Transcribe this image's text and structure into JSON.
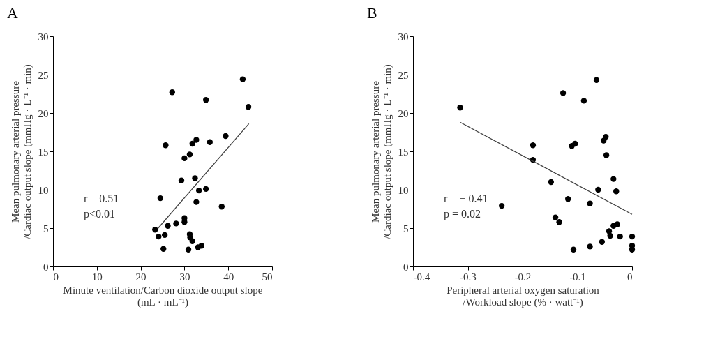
{
  "chart_data": [
    {
      "type": "scatter",
      "title": "A",
      "xlabel": "Minute ventilation/Carbon dioxide output slope\n(mL · mL⁻¹)",
      "ylabel": "Mean pulmonary arterial pressure\n/Cardiac output slope (mmHg · L⁻¹ · min)",
      "xlim": [
        0,
        50
      ],
      "xticks": [
        0,
        10,
        20,
        30,
        40,
        50
      ],
      "ylim": [
        0,
        30
      ],
      "yticks": [
        0,
        5,
        10,
        15,
        20,
        25,
        30
      ],
      "grid": false,
      "annotations": [
        "r = 0.51",
        "p<0.01"
      ],
      "series": [
        {
          "marker": "circle",
          "color": "#000000",
          "x": [
            27.2,
            43.3,
            34.9,
            44.6,
            39.4,
            32.7,
            31.8,
            35.8,
            25.7,
            31.2,
            30.0,
            29.3,
            32.4,
            33.3,
            34.9,
            24.5,
            32.7,
            38.5,
            30.0,
            30.0,
            28.1,
            26.2,
            23.3,
            24.1,
            25.5,
            31.2,
            31.3,
            31.8,
            25.2,
            30.9,
            33.1,
            33.9
          ],
          "values": [
            22.7,
            24.4,
            21.7,
            20.8,
            17.0,
            16.5,
            16.0,
            16.2,
            15.8,
            14.6,
            14.1,
            11.2,
            11.5,
            9.9,
            10.1,
            8.9,
            8.4,
            7.8,
            6.3,
            5.8,
            5.6,
            5.3,
            4.8,
            3.9,
            4.1,
            4.2,
            3.8,
            3.3,
            2.3,
            2.2,
            2.5,
            2.7
          ]
        },
        {
          "type": "line",
          "color": "#404040",
          "line_style": "solid",
          "x": [
            24.0,
            44.7
          ],
          "values": [
            5.0,
            18.6
          ]
        }
      ]
    },
    {
      "type": "scatter",
      "title": "B",
      "xlabel": "Peripheral arterial oxygen saturation\n/Workload slope (% · watt⁻¹)",
      "ylabel": "Mean pulmonary arterial pressure\n/Cardiac output slope (mmHg · L⁻¹ · min)",
      "xlim": [
        -0.4,
        0
      ],
      "xticks": [
        -0.4,
        -0.3,
        -0.2,
        -0.1,
        0
      ],
      "ylim": [
        0,
        30
      ],
      "yticks": [
        0,
        5,
        10,
        15,
        20,
        25,
        30
      ],
      "grid": false,
      "annotations": [
        "r = − 0.41",
        "p = 0.02"
      ],
      "series": [
        {
          "marker": "circle",
          "color": "#000000",
          "x": [
            -0.314,
            -0.238,
            -0.181,
            -0.181,
            -0.148,
            -0.14,
            -0.133,
            -0.126,
            -0.117,
            -0.11,
            -0.104,
            -0.107,
            -0.088,
            -0.077,
            -0.077,
            -0.065,
            -0.062,
            -0.055,
            -0.052,
            -0.048,
            -0.047,
            -0.042,
            -0.04,
            -0.034,
            -0.029,
            -0.034,
            -0.027,
            -0.022,
            0,
            0,
            0
          ],
          "values": [
            20.7,
            7.9,
            15.8,
            13.9,
            11.0,
            6.4,
            5.8,
            22.6,
            8.8,
            15.7,
            16.0,
            2.2,
            21.6,
            8.2,
            2.6,
            24.3,
            10.0,
            3.2,
            16.4,
            16.9,
            14.5,
            4.6,
            4.0,
            11.4,
            9.8,
            5.3,
            5.5,
            3.9,
            3.9,
            2.7,
            2.2
          ]
        },
        {
          "type": "line",
          "color": "#404040",
          "line_style": "solid",
          "x": [
            -0.314,
            0
          ],
          "values": [
            18.8,
            6.8
          ]
        }
      ]
    }
  ]
}
